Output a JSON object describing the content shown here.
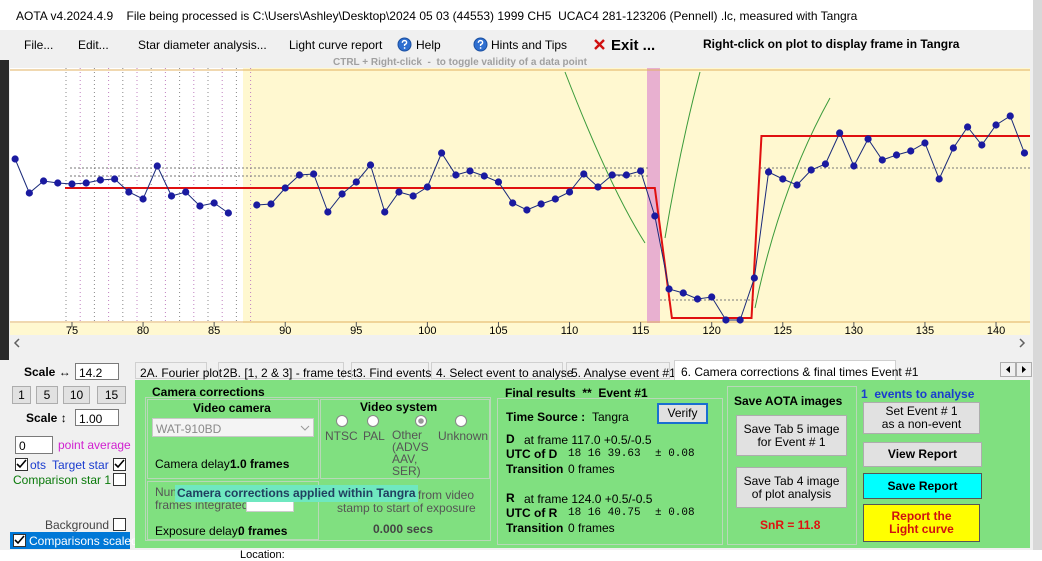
{
  "window_title": "AOTA v4.2024.4.9    File being processed is C:\\Users\\Ashley\\Desktop\\2024 05 03 (44553) 1999 CH5  UCAC4 281-123206 (Pennell) .lc, measured with Tangra",
  "menu": [
    "File...",
    "Edit...",
    "Star diameter analysis...",
    "Light curve report",
    "Help",
    "Hints and Tips",
    "Exit ..."
  ],
  "plot_hint": "Right-click on plot to display frame in Tangra",
  "ctrl_hint": "CTRL + Right-click  -  to toggle validity of a data point",
  "plot": {
    "x": [
      71,
      72,
      73,
      74,
      75,
      76,
      77,
      78,
      79,
      80,
      81,
      82,
      83,
      84,
      85,
      86,
      87,
      88,
      89,
      90,
      91,
      92,
      93,
      94,
      95,
      96,
      97,
      98,
      99,
      100,
      101,
      102,
      103,
      104,
      105,
      106,
      107,
      108,
      109,
      110,
      111,
      112,
      113,
      114,
      115,
      116,
      117,
      118,
      119,
      120,
      121,
      122,
      123,
      124,
      125,
      126,
      127,
      128,
      129,
      130,
      131,
      132,
      133,
      134,
      135,
      136,
      137,
      138,
      139,
      140,
      141,
      142
    ],
    "values": [
      163,
      129,
      141,
      139,
      138,
      139,
      142,
      143,
      130,
      123,
      156,
      126,
      130,
      116,
      119,
      109,
      null,
      117,
      118,
      134,
      147,
      148,
      110,
      128,
      140,
      157,
      110,
      130,
      126,
      135,
      169,
      147,
      151,
      146,
      140,
      119,
      112,
      118,
      123,
      130,
      148,
      135,
      147,
      147,
      151,
      106,
      33,
      29,
      23,
      25,
      2,
      2,
      44,
      150,
      143,
      137,
      152,
      158,
      189,
      156,
      183,
      162,
      167,
      171,
      179,
      143,
      174,
      195,
      177,
      197,
      206,
      169
    ],
    "xlim": [
      70.64,
      142.39
    ],
    "ylim": [
      0,
      250
    ],
    "xticks": [
      75,
      80,
      85,
      90,
      95,
      100,
      105,
      110,
      115,
      120,
      125,
      130,
      135,
      140
    ],
    "model": {
      "levels": [
        134,
        4,
        186
      ],
      "edges": [
        116.0,
        117.2,
        122.8,
        123.5
      ]
    }
  },
  "side": {
    "scale_h_label": "Scale ↔",
    "scale_h_value": "14.2",
    "scale_buttons": [
      "1",
      "5",
      "10",
      "15"
    ],
    "scale_v_label": "Scale ↕",
    "scale_v_value": "1.00",
    "avg_value": "0",
    "avg_label": "point average",
    "target_prefix": "ots",
    "target": "Target star",
    "comparison": "Comparison star 1",
    "background": "Background",
    "scaled": "Comparisons scaled"
  },
  "tabs": [
    "2A. Fourier plot",
    "2B. [1, 2 & 3] - frame test",
    "3. Find events",
    "4. Select event to analyse",
    "5. Analyse event #1",
    "6. Camera corrections & final times Event #1"
  ],
  "camera": {
    "title": "Camera corrections",
    "video_camera": "Video camera",
    "camera_model": "WAT-910BD",
    "camera_delay": "Camera delay: ",
    "camera_delay_value": "1.0 frames",
    "video_system": "Video system",
    "radios": [
      "NTSC",
      "PAL",
      "Other (ADVS AAV, SER)",
      "Unknown"
    ],
    "num_frames_1": "Num",
    "num_frames_2": "frames integrated",
    "tooltip": "Camera corrections applied within Tangra",
    "exposure_delay": "Exposure delay: ",
    "exposure_delay_value": "0 frames",
    "stamp_1": "from video",
    "stamp_2": "stamp to start of exposure",
    "secs": "0.000 secs"
  },
  "results": {
    "title": "Final results  **  Event #1",
    "time_source_label": "Time Source :",
    "time_source": "Tangra",
    "verify": "Verify",
    "d_label": "D",
    "d_frame": "at frame 117.0 +0.5/-0.5",
    "utc_d_label": "UTC of D",
    "utc_d": "18 16 39.63",
    "utc_d_err": "± 0.08",
    "transition_label_d": "Transition",
    "transition_d": "0 frames",
    "r_label": "R",
    "r_frame": "at frame 124.0 +0.5/-0.5",
    "utc_r_label": "UTC of R",
    "utc_r": "18 16 40.75",
    "utc_r_err": "± 0.08",
    "transition_label_r": "Transition",
    "transition_r": "0 frames"
  },
  "save": {
    "title": "Save AOTA images",
    "tab5": "Save Tab 5 image for Event # 1",
    "tab4": "Save Tab 4 image of plot analysis",
    "snr": "SnR = 11.8"
  },
  "actions": {
    "events": "1  events to analyse",
    "non_event": "Set Event # 1 as a non-event",
    "view_report": "View Report",
    "save_report": "Save Report",
    "report_lc": "Report the Light curve"
  },
  "status": {
    "location": "Location:"
  }
}
